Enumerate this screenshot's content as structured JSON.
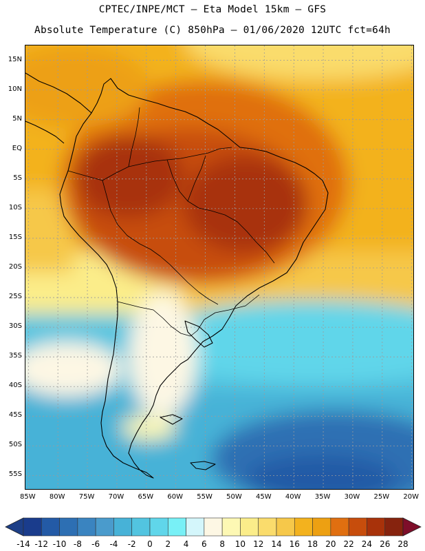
{
  "header": {
    "line1": "CPTEC/INPE/MCT –  Eta Model 15km – GFS",
    "line2": "Absolute Temperature (C) 850hPa – 01/06/2020 12UTC fct=64h"
  },
  "map": {
    "lat_labels": [
      "15N",
      "10N",
      "5N",
      "EQ",
      "5S",
      "10S",
      "15S",
      "20S",
      "25S",
      "30S",
      "35S",
      "40S",
      "45S",
      "50S",
      "55S"
    ],
    "lat_values": [
      15,
      10,
      5,
      0,
      -5,
      -10,
      -15,
      -20,
      -25,
      -30,
      -35,
      -40,
      -45,
      -50,
      -55
    ],
    "lon_labels": [
      "85W",
      "80W",
      "75W",
      "70W",
      "65W",
      "60W",
      "55W",
      "50W",
      "45W",
      "40W",
      "35W",
      "30W",
      "25W",
      "20W"
    ],
    "lon_values": [
      -85,
      -80,
      -75,
      -70,
      -65,
      -60,
      -55,
      -50,
      -45,
      -40,
      -35,
      -30,
      -25,
      -20
    ],
    "lon_range": [
      -85.5,
      -19.5
    ],
    "lat_range": [
      -57.5,
      17.5
    ]
  },
  "colorbar": {
    "labels": [
      "-14",
      "-12",
      "-10",
      "-8",
      "-6",
      "-4",
      "-2",
      "0",
      "2",
      "4",
      "6",
      "8",
      "10",
      "12",
      "14",
      "16",
      "18",
      "20",
      "22",
      "24",
      "26",
      "28"
    ],
    "colors": [
      "#1a3c8c",
      "#235aa6",
      "#2d6fb3",
      "#3a84c0",
      "#4a9bcc",
      "#47b2d7",
      "#52c4e0",
      "#60d6ea",
      "#78f0f6",
      "#d4f6fb",
      "#fdf7e4",
      "#fdf8b4",
      "#fbed8a",
      "#fadc6c",
      "#f6c84a",
      "#f3b21e",
      "#eda012",
      "#e06f10",
      "#c74d0c",
      "#a8320a",
      "#86230e"
    ],
    "under_color": "#1d3f87",
    "over_color": "#7e0e2a"
  }
}
